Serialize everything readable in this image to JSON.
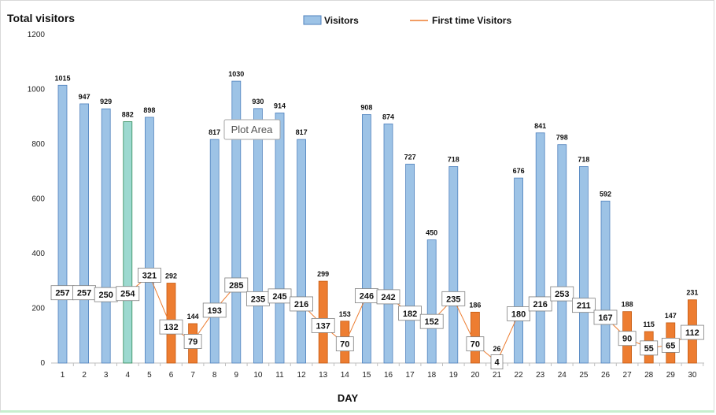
{
  "chart_data": {
    "type": "bar+line",
    "title": "Total visitors",
    "xlabel": "DAY",
    "ylabel": "",
    "ylim": [
      0,
      1200
    ],
    "yticks": [
      0,
      200,
      400,
      600,
      800,
      1000,
      1200
    ],
    "categories": [
      "1",
      "2",
      "3",
      "4",
      "5",
      "6",
      "7",
      "8",
      "9",
      "10",
      "11",
      "12",
      "13",
      "14",
      "15",
      "16",
      "17",
      "18",
      "19",
      "20",
      "21",
      "22",
      "23",
      "24",
      "25",
      "26",
      "27",
      "28",
      "29",
      "30"
    ],
    "series": [
      {
        "name": "Visitors",
        "kind": "bar",
        "values": [
          1015,
          947,
          929,
          882,
          898,
          292,
          144,
          817,
          1030,
          930,
          914,
          817,
          299,
          153,
          908,
          874,
          727,
          450,
          718,
          186,
          26,
          676,
          841,
          798,
          718,
          592,
          188,
          115,
          147,
          231
        ]
      },
      {
        "name": "First time Visitors",
        "kind": "line",
        "values": [
          257,
          257,
          250,
          254,
          321,
          132,
          79,
          193,
          285,
          235,
          245,
          216,
          137,
          70,
          246,
          242,
          182,
          152,
          235,
          70,
          4,
          180,
          216,
          253,
          211,
          167,
          90,
          55,
          65,
          112
        ]
      }
    ],
    "bar_colors": {
      "normal": "#9dc3e6",
      "normal_border": "#4f81bd",
      "highlight": "#ed7d31",
      "highlight_border": "#c55a11",
      "selected": "#9dd9d0",
      "selected_border": "#2e8b57"
    },
    "line_color": "#ed7d31",
    "highlight_days": [
      "6",
      "7",
      "13",
      "14",
      "20",
      "21",
      "27",
      "28",
      "29",
      "30"
    ],
    "selected_day": "4",
    "legend_position": "top",
    "tooltip": "Plot Area"
  }
}
